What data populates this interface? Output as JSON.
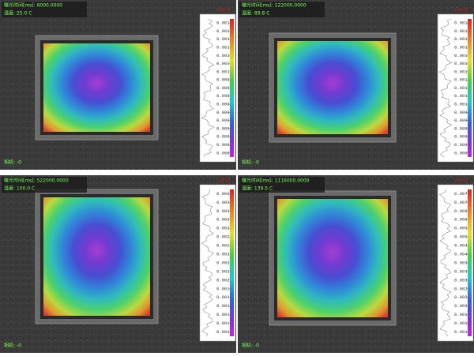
{
  "panels": [
    {
      "exposure": "曝光时间[ms]: 6000.0000",
      "temperature": "温度: 25.0 C",
      "camera": "相机: -0",
      "unit": "[mm]",
      "scale_labels": [
        "0.001",
        "0.001",
        "0.001",
        "0.001",
        "0.001",
        "0.001",
        "0.001",
        "0.000",
        "0.000",
        "0.000",
        "0.000",
        "0.000",
        "0.000",
        "0.000",
        "0.000",
        "0.000",
        "0.000"
      ]
    },
    {
      "exposure": "曝光时间[ms]: 122000.0000",
      "temperature": "温度: 89.8 C",
      "camera": "相机: -0",
      "unit": "[mm]",
      "scale_labels": [
        "0.001",
        "0.001",
        "0.001",
        "0.001",
        "0.001",
        "0.001",
        "0.001",
        "0.001",
        "0.001",
        "0.001",
        "0.001",
        "0.000",
        "0.000",
        "0.000",
        "0.000",
        "0.000",
        "0.000"
      ]
    },
    {
      "exposure": "曝光时间[ms]: 522000.0000",
      "temperature": "温度: 100.0 C",
      "camera": "相机: -0",
      "unit": "[mm]",
      "scale_labels": [
        "0.003",
        "0.003",
        "0.003",
        "0.002",
        "0.002",
        "0.002",
        "0.002",
        "0.002",
        "0.002",
        "0.002",
        "0.002",
        "0.001",
        "0.001",
        "0.001",
        "0.001",
        "0.001",
        "0.001"
      ]
    },
    {
      "exposure": "曝光时间[ms]: 1116000.0000",
      "temperature": "温度: 139.5 C",
      "camera": "相机: -0",
      "unit": "[mm]",
      "scale_labels": [
        "0.007",
        "0.007",
        "0.006",
        "0.006",
        "0.005",
        "0.005",
        "0.004",
        "0.004",
        "0.003",
        "0.003",
        "0.003",
        "0.002",
        "0.002",
        "0.002",
        "0.001",
        "0.001",
        "0.001"
      ]
    }
  ]
}
